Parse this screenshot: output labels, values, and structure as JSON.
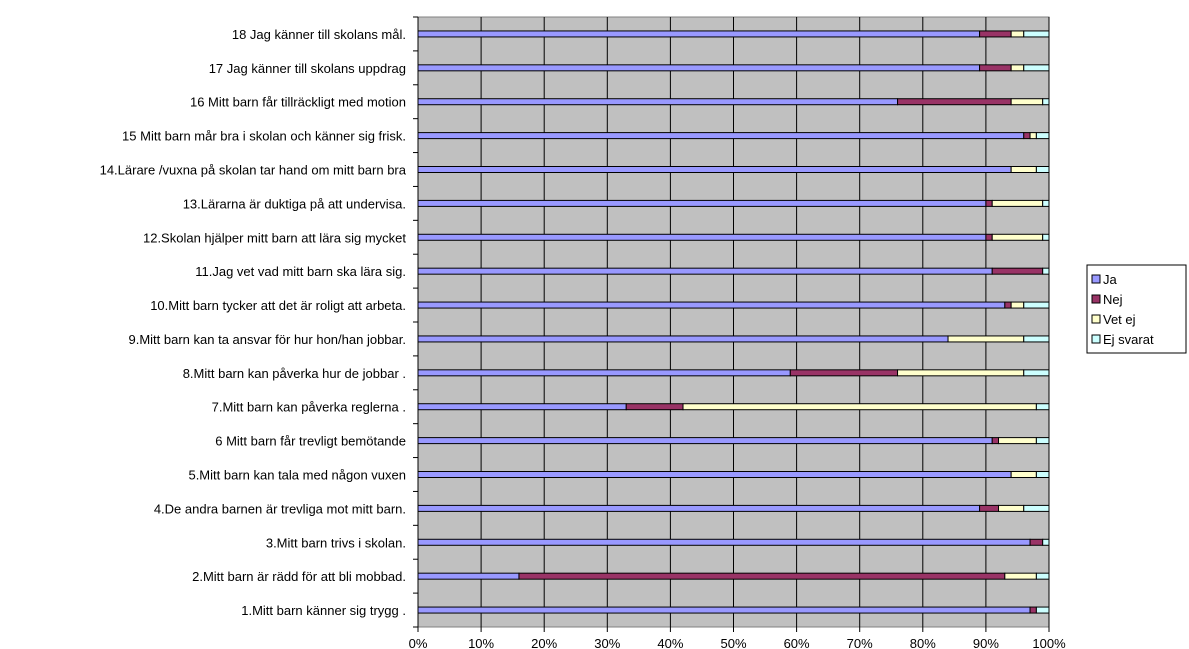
{
  "chart_data": {
    "type": "bar",
    "orientation": "horizontal",
    "stacked": "percent",
    "categories": [
      "18 Jag känner till skolans mål.",
      "17 Jag känner till skolans uppdrag",
      "16 Mitt barn får tillräckligt med motion",
      "15 Mitt barn mår bra i skolan och känner sig frisk.",
      "14.Lärare /vuxna på skolan tar hand om mitt barn bra",
      "13.Lärarna är duktiga på att undervisa.",
      "12.Skolan hjälper mitt barn att lära sig mycket",
      "11.Jag vet vad mitt barn ska lära sig.",
      "10.Mitt barn tycker att det är roligt att arbeta.",
      "9.Mitt barn kan ta ansvar för hur hon/han jobbar.",
      "8.Mitt barn kan påverka hur de jobbar .",
      "7.Mitt barn kan påverka reglerna .",
      "6 Mitt barn får trevligt bemötande",
      "5.Mitt barn kan tala med någon vuxen",
      "4.De andra barnen är trevliga mot mitt barn.",
      "3.Mitt barn trivs i skolan.",
      "2.Mitt barn är rädd för att bli mobbad.",
      "1.Mitt barn känner sig trygg ."
    ],
    "series": [
      {
        "name": "Ja",
        "color": "#9999FF",
        "values": [
          89,
          89,
          76,
          96,
          94,
          90,
          90,
          91,
          93,
          84,
          59,
          33,
          91,
          94,
          89,
          97,
          16,
          97
        ]
      },
      {
        "name": "Nej",
        "color": "#993366",
        "values": [
          5,
          5,
          18,
          1,
          0,
          1,
          1,
          8,
          1,
          0,
          17,
          9,
          1,
          0,
          3,
          2,
          77,
          1
        ]
      },
      {
        "name": "Vet ej",
        "color": "#FFFFCC",
        "values": [
          2,
          2,
          5,
          1,
          4,
          8,
          8,
          0,
          2,
          12,
          20,
          56,
          6,
          4,
          4,
          0,
          5,
          0
        ]
      },
      {
        "name": "Ej svarat",
        "color": "#CCFFFF",
        "values": [
          4,
          4,
          1,
          2,
          2,
          1,
          1,
          1,
          4,
          4,
          4,
          2,
          2,
          2,
          4,
          1,
          2,
          2
        ]
      }
    ],
    "x_ticks": [
      "0%",
      "10%",
      "20%",
      "30%",
      "40%",
      "50%",
      "60%",
      "70%",
      "80%",
      "90%",
      "100%"
    ],
    "xlim": [
      0,
      100
    ],
    "grid": true,
    "plot_background": "#C0C0C0",
    "legend_position": "right"
  }
}
